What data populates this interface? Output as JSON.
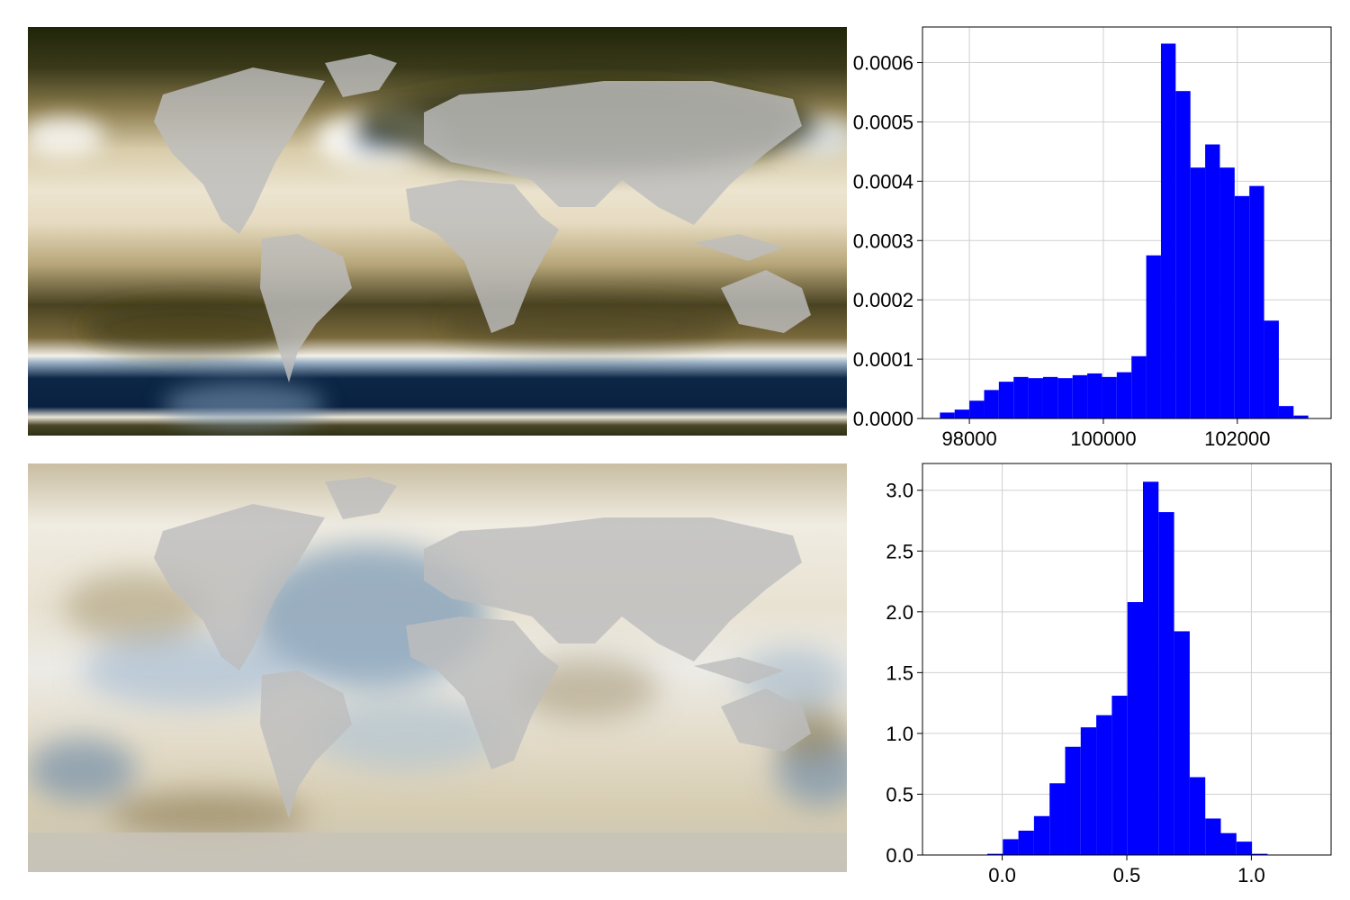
{
  "colors": {
    "bar": "#0000ff",
    "grid": "#d0d0d0",
    "axis": "#000000",
    "land": "#bdbdbd",
    "map_top_cmap": [
      "#1c2208",
      "#5a4f22",
      "#a89a6e",
      "#e8dfc8",
      "#ffffff",
      "#8fa7bf",
      "#2b4f72",
      "#0c2444"
    ],
    "map_bottom_cmap": [
      "#6b6040",
      "#b3a88a",
      "#f0ece2",
      "#ffffff",
      "#b8c8d8",
      "#4a6f94"
    ]
  },
  "chart_data": [
    {
      "type": "heatmap",
      "panel": "map-top",
      "title": "",
      "xlabel": "",
      "ylabel": "",
      "grid": false,
      "axes": "off",
      "colormap": "brown-white-blue"
    },
    {
      "type": "bar",
      "panel": "hist-top",
      "title": "",
      "xlabel": "",
      "ylabel": "",
      "grid": true,
      "xlim": [
        97300,
        103400
      ],
      "ylim": [
        0,
        0.00066
      ],
      "bin_start": 97560,
      "bin_width": 220,
      "values": [
        1e-05,
        1.5e-05,
        3e-05,
        4.8e-05,
        6.2e-05,
        7e-05,
        6.8e-05,
        7e-05,
        6.8e-05,
        7.3e-05,
        7.6e-05,
        7e-05,
        7.8e-05,
        0.000105,
        0.000275,
        0.000632,
        0.000552,
        0.000423,
        0.000462,
        0.000423,
        0.000375,
        0.000392,
        0.000165,
        2.1e-05,
        5e-06
      ],
      "xticks": [
        98000,
        100000,
        102000
      ],
      "xtick_labels": [
        "98000",
        "100000",
        "102000"
      ],
      "yticks": [
        0,
        0.0001,
        0.0002,
        0.0003,
        0.0004,
        0.0005,
        0.0006
      ],
      "ytick_labels": [
        "0.0000",
        "0.0001",
        "0.0002",
        "0.0003",
        "0.0004",
        "0.0005",
        "0.0006"
      ]
    },
    {
      "type": "heatmap",
      "panel": "map-bottom",
      "title": "",
      "xlabel": "",
      "ylabel": "",
      "grid": false,
      "axes": "off",
      "colormap": "brown-white-blue"
    },
    {
      "type": "bar",
      "panel": "hist-bottom",
      "title": "",
      "xlabel": "",
      "ylabel": "",
      "grid": true,
      "xlim": [
        -0.32,
        1.32
      ],
      "ylim": [
        0,
        3.22
      ],
      "bin_start": -0.06,
      "bin_width": 0.0625,
      "values": [
        0.01,
        0.13,
        0.2,
        0.32,
        0.59,
        0.89,
        1.05,
        1.15,
        1.31,
        2.08,
        3.07,
        2.82,
        1.84,
        0.64,
        0.3,
        0.18,
        0.11,
        0.01
      ],
      "xticks": [
        0.0,
        0.5,
        1.0
      ],
      "xtick_labels": [
        "0.0",
        "0.5",
        "1.0"
      ],
      "yticks": [
        0.0,
        0.5,
        1.0,
        1.5,
        2.0,
        2.5,
        3.0
      ],
      "ytick_labels": [
        "0.0",
        "0.5",
        "1.0",
        "1.5",
        "2.0",
        "2.5",
        "3.0"
      ]
    }
  ]
}
